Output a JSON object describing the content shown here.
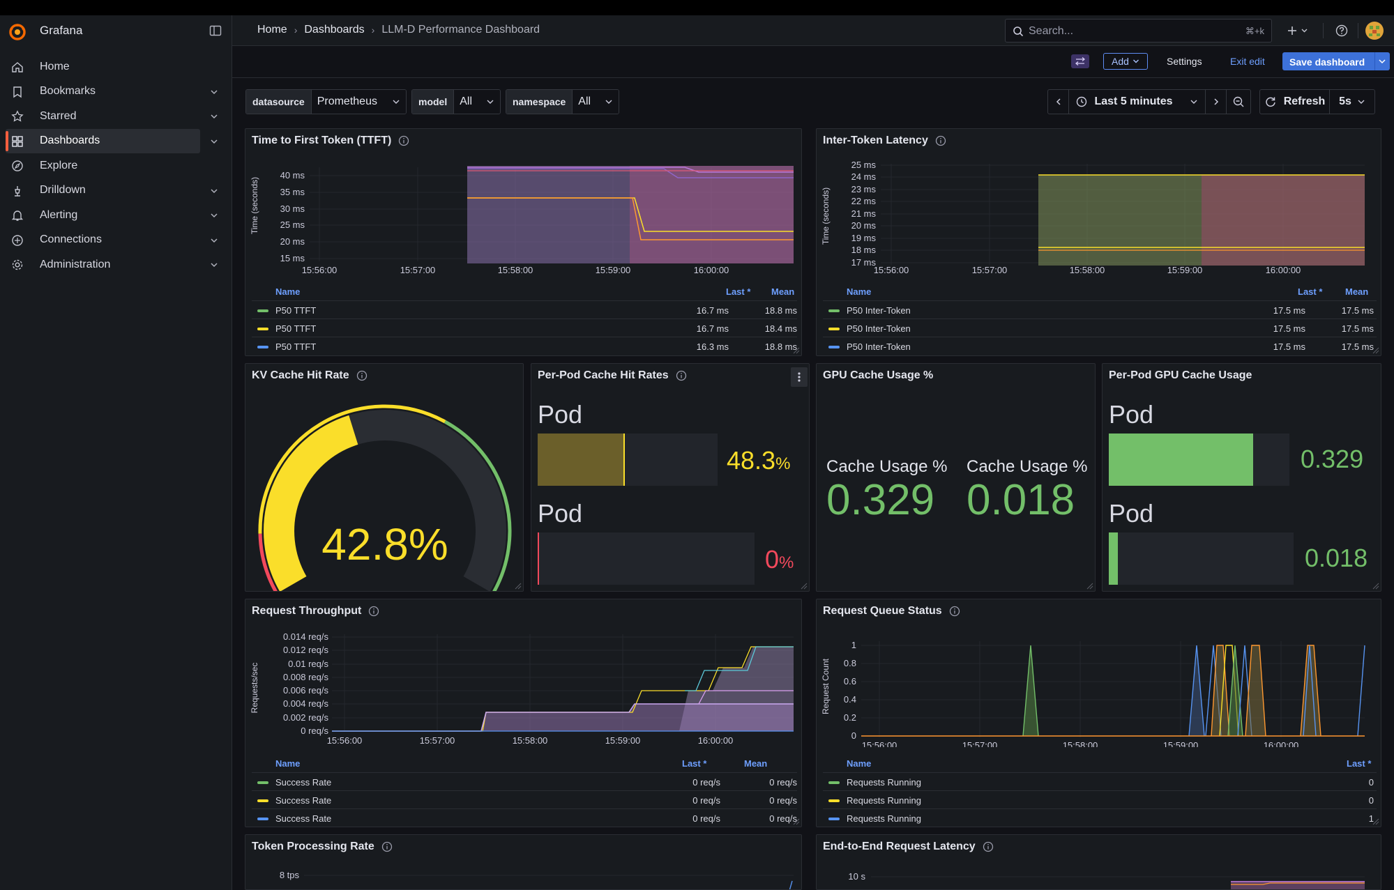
{
  "app": {
    "name": "Grafana"
  },
  "sidebar": {
    "items": [
      {
        "label": "Home",
        "icon": "home-icon",
        "chevron": false
      },
      {
        "label": "Bookmarks",
        "icon": "bookmark-icon",
        "chevron": true
      },
      {
        "label": "Starred",
        "icon": "star-icon",
        "chevron": true
      },
      {
        "label": "Dashboards",
        "icon": "dashboards-icon",
        "chevron": true,
        "active": true
      },
      {
        "label": "Explore",
        "icon": "compass-icon",
        "chevron": false
      },
      {
        "label": "Drilldown",
        "icon": "drilldown-icon",
        "chevron": true
      },
      {
        "label": "Alerting",
        "icon": "bell-icon",
        "chevron": true
      },
      {
        "label": "Connections",
        "icon": "connections-icon",
        "chevron": true
      },
      {
        "label": "Administration",
        "icon": "gear-icon",
        "chevron": true
      }
    ]
  },
  "breadcrumb": [
    "Home",
    "Dashboards",
    "LLM-D Performance Dashboard"
  ],
  "search": {
    "placeholder": "Search...",
    "shortcut": "⌘+k"
  },
  "toolbar": {
    "add_label": "Add",
    "settings_label": "Settings",
    "exit_label": "Exit edit",
    "save_label": "Save dashboard"
  },
  "variables": [
    {
      "key": "datasource",
      "value": "Prometheus"
    },
    {
      "key": "model",
      "value": "All"
    },
    {
      "key": "namespace",
      "value": "All"
    }
  ],
  "time": {
    "range": "Last 5 minutes",
    "refresh_label": "Refresh",
    "interval": "5s"
  },
  "colors": {
    "green": "#73bf69",
    "yellow": "#fade2a",
    "blue": "#5794f2",
    "red": "#f2495c",
    "purple": "#b877d9",
    "orange": "#ff9830",
    "link": "#6e9fff",
    "accent": "#f55f3e"
  },
  "x_ticks": [
    "15:56:00",
    "15:57:00",
    "15:58:00",
    "15:59:00",
    "16:00:00"
  ],
  "panels": {
    "ttft": {
      "title": "Time to First Token (TTFT)",
      "ylabel": "Time (seconds)",
      "y_ticks": [
        "40 ms",
        "35 ms",
        "30 ms",
        "25 ms",
        "20 ms",
        "15 ms"
      ],
      "legend_headers": {
        "name": "Name",
        "last": "Last *",
        "mean": "Mean"
      },
      "legend": [
        {
          "name": "P50 TTFT",
          "color": "#73bf69",
          "last": "16.7 ms",
          "mean": "18.8 ms"
        },
        {
          "name": "P50 TTFT",
          "color": "#fade2a",
          "last": "16.7 ms",
          "mean": "18.4 ms"
        },
        {
          "name": "P50 TTFT",
          "color": "#5794f2",
          "last": "16.3 ms",
          "mean": "18.8 ms"
        }
      ]
    },
    "itl": {
      "title": "Inter-Token Latency",
      "ylabel": "Time (seconds)",
      "y_ticks": [
        "25 ms",
        "24 ms",
        "23 ms",
        "22 ms",
        "21 ms",
        "20 ms",
        "19 ms",
        "18 ms",
        "17 ms"
      ],
      "legend_headers": {
        "name": "Name",
        "last": "Last *",
        "mean": "Mean"
      },
      "legend": [
        {
          "name": "P50 Inter-Token",
          "color": "#73bf69",
          "last": "17.5 ms",
          "mean": "17.5 ms"
        },
        {
          "name": "P50 Inter-Token",
          "color": "#fade2a",
          "last": "17.5 ms",
          "mean": "17.5 ms"
        },
        {
          "name": "P50 Inter-Token",
          "color": "#5794f2",
          "last": "17.5 ms",
          "mean": "17.5 ms"
        }
      ]
    },
    "kv": {
      "title": "KV Cache Hit Rate",
      "value": "42.8",
      "unit": "%",
      "fraction": 0.428
    },
    "perpod_hit": {
      "title": "Per-Pod Cache Hit Rates",
      "bars": [
        {
          "label": "Pod",
          "value": "48.3",
          "unit": "%",
          "fraction": 0.483,
          "color": "#fade2a"
        },
        {
          "label": "Pod",
          "value": "0",
          "unit": "%",
          "fraction": 0.0,
          "color": "#f2495c"
        }
      ]
    },
    "gpu_cache": {
      "title": "GPU Cache Usage %",
      "stats": [
        {
          "label": "Cache Usage %",
          "value": "0.329"
        },
        {
          "label": "Cache Usage %",
          "value": "0.018"
        }
      ]
    },
    "perpod_gpu": {
      "title": "Per-Pod GPU Cache Usage",
      "bars": [
        {
          "label": "Pod",
          "value": "0.329",
          "fraction": 0.8,
          "color": "#73bf69"
        },
        {
          "label": "Pod",
          "value": "0.018",
          "fraction": 0.05,
          "color": "#73bf69"
        }
      ]
    },
    "throughput": {
      "title": "Request Throughput",
      "ylabel": "Requests/sec",
      "y_ticks": [
        "0.014 req/s",
        "0.012 req/s",
        "0.01 req/s",
        "0.008 req/s",
        "0.006 req/s",
        "0.004 req/s",
        "0.002 req/s",
        "0 req/s"
      ],
      "legend_headers": {
        "name": "Name",
        "last": "Last *",
        "mean": "Mean"
      },
      "legend": [
        {
          "name": "Success Rate",
          "color": "#73bf69",
          "last": "0 req/s",
          "mean": "0 req/s"
        },
        {
          "name": "Success Rate",
          "color": "#fade2a",
          "last": "0 req/s",
          "mean": "0 req/s"
        },
        {
          "name": "Success Rate",
          "color": "#5794f2",
          "last": "0 req/s",
          "mean": "0 req/s"
        }
      ]
    },
    "queue": {
      "title": "Request Queue Status",
      "ylabel": "Request Count",
      "y_ticks": [
        "1",
        "0.8",
        "0.6",
        "0.4",
        "0.2",
        "0"
      ],
      "legend_headers": {
        "name": "Name",
        "last": "Last *"
      },
      "legend": [
        {
          "name": "Requests Running",
          "color": "#73bf69",
          "last": "0"
        },
        {
          "name": "Requests Running",
          "color": "#fade2a",
          "last": "0"
        },
        {
          "name": "Requests Running",
          "color": "#5794f2",
          "last": "1"
        }
      ]
    },
    "token_rate": {
      "title": "Token Processing Rate",
      "y_top": "8 tps"
    },
    "e2e": {
      "title": "End-to-End Request Latency",
      "y_top": "10 s"
    }
  }
}
